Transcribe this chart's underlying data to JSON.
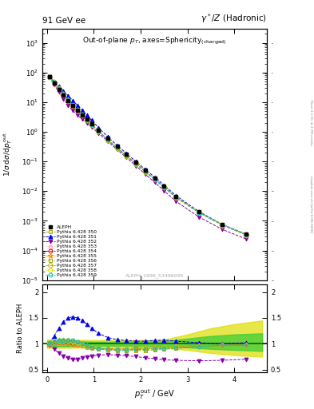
{
  "title_left": "91 GeV ee",
  "title_right": "γ*/Z (Hadronic)",
  "plot_title": "Out-of-plane p_{T}, axes=Sphericity_{(charged)}",
  "xlabel": "p_{T}^{out} / GeV",
  "ylabel_top": "1/σ dσ/dp_{T}^{out}",
  "ylabel_bottom": "Ratio to ALEPH",
  "watermark": "ALEPH_1996_S3486095",
  "right_label": "mcplots.cern.ch [arXiv:1306.3436]",
  "right_label2": "Rivet 3.1.10, ≥ 2.7M events",
  "xdata": [
    0.05,
    0.15,
    0.25,
    0.35,
    0.45,
    0.55,
    0.65,
    0.75,
    0.85,
    0.95,
    1.1,
    1.3,
    1.5,
    1.7,
    1.9,
    2.1,
    2.3,
    2.5,
    2.75,
    3.25,
    3.75,
    4.25
  ],
  "aleph_y": [
    72,
    44,
    27,
    17,
    11,
    7.5,
    5.2,
    3.7,
    2.65,
    1.9,
    1.15,
    0.6,
    0.32,
    0.175,
    0.095,
    0.051,
    0.028,
    0.015,
    0.0068,
    0.002,
    0.00075,
    0.00035
  ],
  "aleph_yerr_lo": [
    5,
    3,
    2,
    1.2,
    0.8,
    0.5,
    0.35,
    0.25,
    0.18,
    0.13,
    0.08,
    0.04,
    0.022,
    0.012,
    0.007,
    0.0038,
    0.0021,
    0.0012,
    0.0006,
    0.00018,
    8e-05,
    4e-05
  ],
  "aleph_yerr_hi": [
    5,
    3,
    2,
    1.2,
    0.8,
    0.5,
    0.35,
    0.25,
    0.18,
    0.13,
    0.08,
    0.04,
    0.022,
    0.012,
    0.007,
    0.0038,
    0.0021,
    0.0012,
    0.0006,
    0.00018,
    8e-05,
    4e-05
  ],
  "band_x": [
    0.0,
    0.5,
    1.0,
    1.5,
    2.0,
    2.5,
    3.0,
    3.5,
    4.0,
    4.6
  ],
  "band_yellow_lo": [
    0.92,
    0.92,
    0.93,
    0.93,
    0.93,
    0.92,
    0.88,
    0.82,
    0.78,
    0.75
  ],
  "band_yellow_hi": [
    1.08,
    1.08,
    1.07,
    1.07,
    1.07,
    1.08,
    1.18,
    1.3,
    1.38,
    1.45
  ],
  "band_green_lo": [
    0.95,
    0.95,
    0.96,
    0.96,
    0.96,
    0.95,
    0.93,
    0.9,
    0.88,
    0.86
  ],
  "band_green_hi": [
    1.05,
    1.05,
    1.04,
    1.04,
    1.04,
    1.05,
    1.1,
    1.15,
    1.18,
    1.2
  ],
  "series": [
    {
      "label": "Pythia 6.428 350",
      "color": "#aaaa00",
      "marker": "s",
      "linestyle": "--",
      "ratio": [
        1.02,
        1.04,
        1.06,
        1.07,
        1.07,
        1.06,
        1.03,
        0.99,
        0.95,
        0.92,
        0.9,
        0.88,
        0.87,
        0.87,
        0.87,
        0.87,
        0.88,
        0.89,
        0.91,
        0.94,
        0.96,
        0.97
      ]
    },
    {
      "label": "Pythia 6.428 351",
      "color": "#0000ee",
      "marker": "^",
      "linestyle": "--",
      "ratio": [
        1.02,
        1.15,
        1.3,
        1.42,
        1.5,
        1.52,
        1.5,
        1.45,
        1.38,
        1.3,
        1.2,
        1.12,
        1.08,
        1.06,
        1.05,
        1.05,
        1.06,
        1.07,
        1.05,
        1.02,
        1.0,
        1.02
      ]
    },
    {
      "label": "Pythia 6.428 352",
      "color": "#8800aa",
      "marker": "v",
      "linestyle": "--",
      "ratio": [
        0.98,
        0.9,
        0.82,
        0.76,
        0.72,
        0.7,
        0.7,
        0.72,
        0.74,
        0.76,
        0.78,
        0.79,
        0.78,
        0.77,
        0.75,
        0.73,
        0.71,
        0.69,
        0.68,
        0.67,
        0.68,
        0.7
      ]
    },
    {
      "label": "Pythia 6.428 353",
      "color": "#ff99bb",
      "marker": "^",
      "linestyle": ":",
      "ratio": [
        1.01,
        1.02,
        1.03,
        1.03,
        1.02,
        1.01,
        0.99,
        0.97,
        0.95,
        0.93,
        0.91,
        0.9,
        0.9,
        0.91,
        0.91,
        0.92,
        0.93,
        0.93,
        0.94,
        0.96,
        0.97,
        0.97
      ]
    },
    {
      "label": "Pythia 6.428 354",
      "color": "#cc0000",
      "marker": "o",
      "linestyle": "--",
      "ratio": [
        1.01,
        1.02,
        1.03,
        1.03,
        1.02,
        1.01,
        0.99,
        0.97,
        0.95,
        0.93,
        0.91,
        0.9,
        0.9,
        0.9,
        0.91,
        0.91,
        0.92,
        0.93,
        0.94,
        0.96,
        0.97,
        0.97
      ]
    },
    {
      "label": "Pythia 6.428 355",
      "color": "#ff8800",
      "marker": "*",
      "linestyle": "--",
      "ratio": [
        1.01,
        1.02,
        1.03,
        1.03,
        1.02,
        1.01,
        0.99,
        0.97,
        0.95,
        0.93,
        0.91,
        0.9,
        0.9,
        0.9,
        0.91,
        0.91,
        0.92,
        0.93,
        0.94,
        0.96,
        0.97,
        0.97
      ]
    },
    {
      "label": "Pythia 6.428 356",
      "color": "#88aa00",
      "marker": "s",
      "linestyle": ":",
      "ratio": [
        1.02,
        1.03,
        1.05,
        1.05,
        1.04,
        1.03,
        1.0,
        0.97,
        0.94,
        0.92,
        0.9,
        0.89,
        0.89,
        0.89,
        0.89,
        0.9,
        0.91,
        0.92,
        0.93,
        0.95,
        0.97,
        0.97
      ]
    },
    {
      "label": "Pythia 6.428 357",
      "color": "#ccaa00",
      "marker": "D",
      "linestyle": "--",
      "ratio": [
        1.02,
        1.03,
        1.05,
        1.06,
        1.05,
        1.03,
        1.01,
        0.98,
        0.95,
        0.93,
        0.91,
        0.89,
        0.89,
        0.89,
        0.9,
        0.91,
        0.92,
        0.93,
        0.94,
        0.96,
        0.97,
        0.97
      ]
    },
    {
      "label": "Pythia 6.428 358",
      "color": "#ccdd00",
      "marker": "D",
      "linestyle": ":",
      "ratio": [
        1.02,
        1.04,
        1.06,
        1.07,
        1.06,
        1.05,
        1.02,
        0.99,
        0.96,
        0.93,
        0.91,
        0.89,
        0.89,
        0.89,
        0.9,
        0.91,
        0.91,
        0.92,
        0.94,
        0.96,
        0.97,
        0.97
      ]
    },
    {
      "label": "Pythia 6.428 359",
      "color": "#00bbcc",
      "marker": "o",
      "linestyle": "--",
      "ratio": [
        1.02,
        1.04,
        1.06,
        1.07,
        1.07,
        1.06,
        1.03,
        1.0,
        0.96,
        0.93,
        0.91,
        0.89,
        0.88,
        0.88,
        0.89,
        0.89,
        0.9,
        0.91,
        0.92,
        0.95,
        0.97,
        0.97
      ]
    }
  ]
}
